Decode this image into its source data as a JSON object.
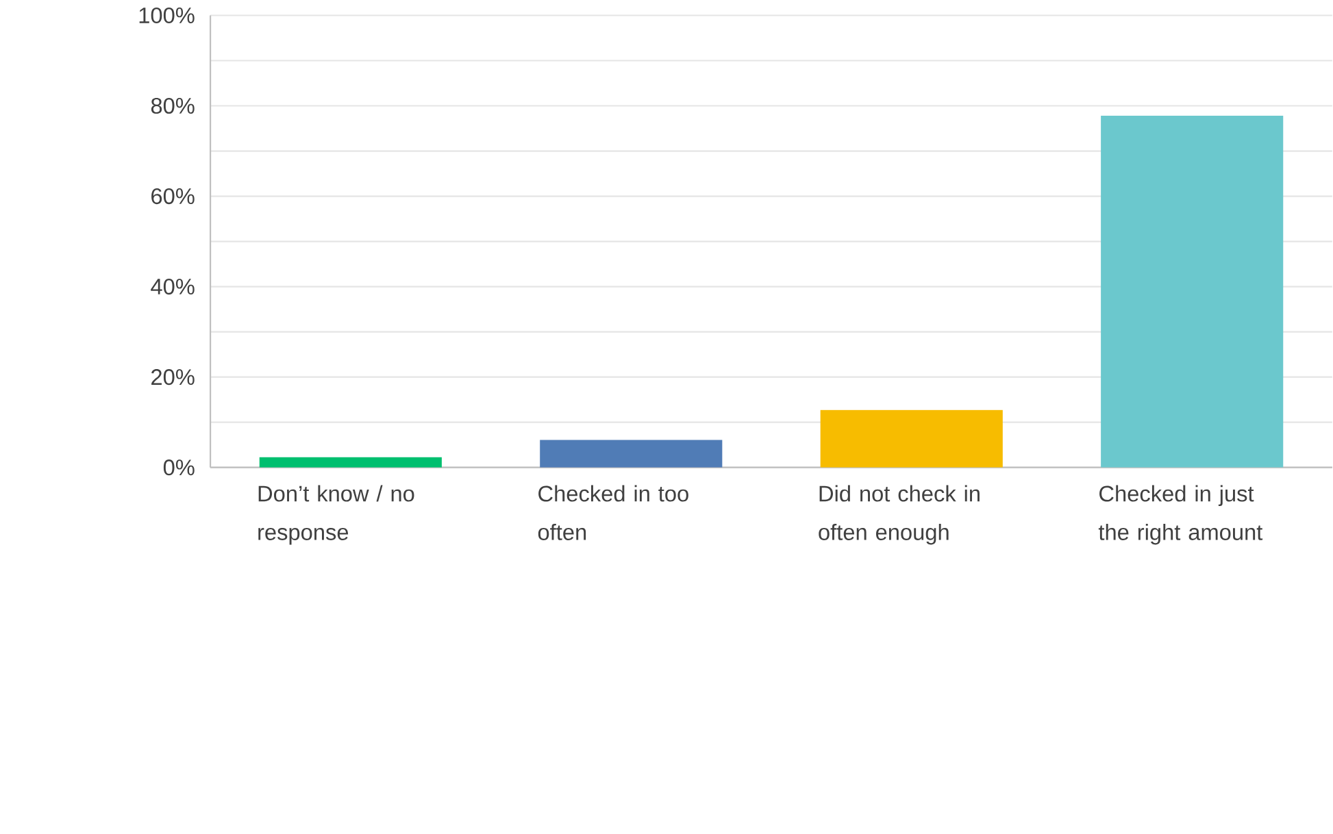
{
  "chart_data": {
    "type": "bar",
    "categories": [
      "Don’t know / no response",
      "Checked in too often",
      "Did not check in often enough",
      "Checked in just the right amount"
    ],
    "values": [
      2.3,
      6.1,
      12.7,
      77.8
    ],
    "colors": [
      "#00bf6f",
      "#507cb6",
      "#f7bc00",
      "#6bc8cd"
    ],
    "ylim": [
      0,
      100
    ],
    "yticks": [
      {
        "value": 0,
        "label": "0%"
      },
      {
        "value": 10,
        "label": null
      },
      {
        "value": 20,
        "label": "20%"
      },
      {
        "value": 30,
        "label": null
      },
      {
        "value": 40,
        "label": "40%"
      },
      {
        "value": 50,
        "label": null
      },
      {
        "value": 60,
        "label": "60%"
      },
      {
        "value": 70,
        "label": null
      },
      {
        "value": 80,
        "label": "80%"
      },
      {
        "value": 90,
        "label": null
      },
      {
        "value": 100,
        "label": "100%"
      }
    ],
    "grid": "y"
  }
}
